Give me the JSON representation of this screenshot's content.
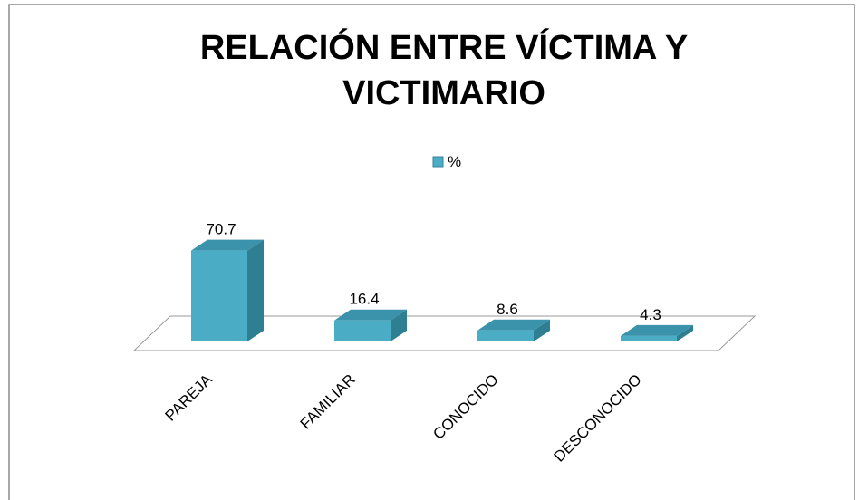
{
  "chart_data": {
    "type": "bar3d",
    "title": "RELACIÓN ENTRE VÍCTIMA Y VICTIMARIO",
    "categories": [
      "PAREJA",
      "FAMILIAR",
      "CONOCIDO",
      "DESCONOCIDO"
    ],
    "series": [
      {
        "name": "%",
        "color": "#4bacc6",
        "values": [
          70.7,
          16.4,
          8.6,
          4.3
        ]
      }
    ],
    "legend": "top"
  }
}
